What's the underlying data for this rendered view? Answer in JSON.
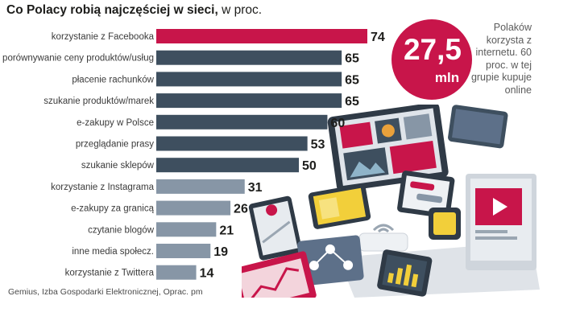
{
  "title_bold": "Co Polacy robią najczęściej w sieci,",
  "title_unit": " w proc.",
  "chart_data": {
    "type": "bar",
    "orientation": "horizontal",
    "title": "Co Polacy robią najczęściej w sieci, w proc.",
    "categories": [
      "korzystanie z Facebooka",
      "porównywanie ceny produktów/usług",
      "płacenie rachunków",
      "szukanie produktów/marek",
      "e-zakupy w Polsce",
      "przeglądanie prasy",
      "szukanie sklepów",
      "korzystanie z Instagrama",
      "e-zakupy za granicą",
      "czytanie blogów",
      "inne media społecz.",
      "korzystanie z Twittera"
    ],
    "values": [
      74,
      65,
      65,
      65,
      60,
      53,
      50,
      31,
      26,
      21,
      19,
      14
    ],
    "value_labels": [
      "74",
      "65",
      "65",
      "65",
      "60",
      "53",
      "50",
      "31",
      "26",
      "21",
      "19",
      "14"
    ],
    "bar_colors": [
      "#c8154a",
      "#3e4f5f",
      "#3e4f5f",
      "#3e4f5f",
      "#3e4f5f",
      "#3e4f5f",
      "#3e4f5f",
      "#8796a6",
      "#8796a6",
      "#8796a6",
      "#8796a6",
      "#8796a6"
    ],
    "xlim": [
      0,
      74
    ]
  },
  "badge": {
    "number": "27,5",
    "unit": "mln",
    "color": "#c8154a"
  },
  "note": "Polaków korzysta z internetu. 60 proc. w tej grupie kupuje online",
  "source": "Gemius, Izba Gospodarki Elektronicznej, Oprac. pm"
}
